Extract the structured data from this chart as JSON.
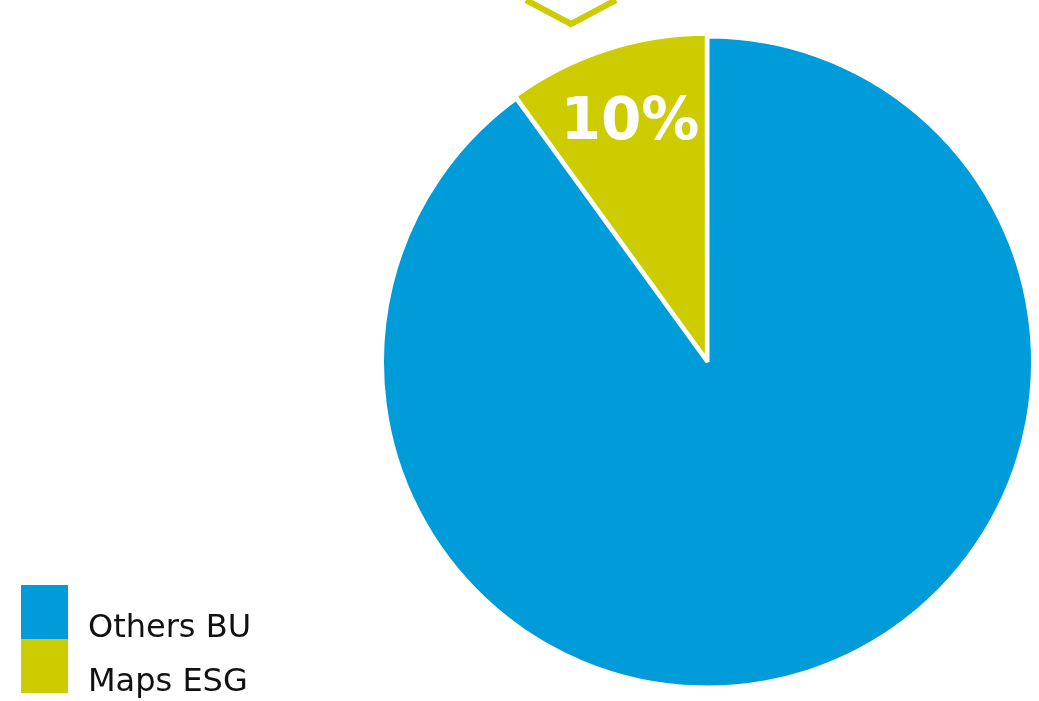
{
  "chart_data": {
    "type": "pie",
    "categories": [
      "Others BU",
      "Maps ESG"
    ],
    "values": [
      90,
      10
    ],
    "colors": [
      "#009cd9",
      "#cccc00"
    ],
    "value_labels": [
      null,
      "10%"
    ],
    "legend": "bottom left"
  }
}
